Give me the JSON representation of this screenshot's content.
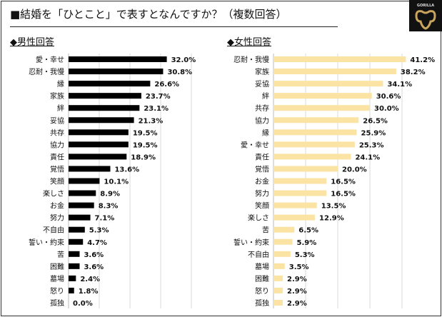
{
  "title": "■結婚を「ひとこと」で表すとなんですか？（複数回答）",
  "logo_text": "GORILLA",
  "chart_data": [
    {
      "type": "bar",
      "orientation": "horizontal",
      "title": "◆男性回答",
      "unit": "%",
      "xlim": [
        0,
        40
      ],
      "grid": true,
      "color": "#000000",
      "categories": [
        "愛・幸せ",
        "忍耐・我慢",
        "縁",
        "家族",
        "絆",
        "妥協",
        "共存",
        "協力",
        "責任",
        "覚悟",
        "笑顔",
        "楽しさ",
        "お金",
        "努力",
        "不自由",
        "誓い・約束",
        "苦",
        "困難",
        "墓場",
        "怒り",
        "孤独"
      ],
      "values": [
        32.0,
        30.8,
        26.6,
        23.7,
        23.1,
        21.3,
        19.5,
        19.5,
        18.9,
        13.6,
        10.1,
        8.9,
        8.3,
        7.1,
        5.3,
        4.7,
        3.6,
        3.6,
        2.4,
        1.8,
        0.0
      ],
      "labels": [
        "32.0%",
        "30.8%",
        "26.6%",
        "23.7%",
        "23.1%",
        "21.3%",
        "19.5%",
        "19.5%",
        "18.9%",
        "13.6%",
        "10.1%",
        "8.9%",
        "8.3%",
        "7.1%",
        "5.3%",
        "4.7%",
        "3.6%",
        "3.6%",
        "2.4%",
        "1.8%",
        "0.0%"
      ]
    },
    {
      "type": "bar",
      "orientation": "horizontal",
      "title": "◆女性回答",
      "unit": "%",
      "xlim": [
        0,
        40
      ],
      "grid": true,
      "color": "#FBE3A4",
      "categories": [
        "忍耐・我慢",
        "家族",
        "妥協",
        "絆",
        "共存",
        "協力",
        "縁",
        "愛・幸せ",
        "責任",
        "覚悟",
        "お金",
        "努力",
        "笑顔",
        "楽しさ",
        "苦",
        "誓い・約束",
        "不自由",
        "墓場",
        "困難",
        "怒り",
        "孤独"
      ],
      "values": [
        41.2,
        38.2,
        34.1,
        30.6,
        30.0,
        26.5,
        25.9,
        25.3,
        24.1,
        20.0,
        16.5,
        16.5,
        13.5,
        12.9,
        6.5,
        5.9,
        5.3,
        3.5,
        2.9,
        2.9,
        2.9
      ],
      "labels": [
        "41.2%",
        "38.2%",
        "34.1%",
        "30.6%",
        "30.0%",
        "26.5%",
        "25.9%",
        "25.3%",
        "24.1%",
        "20.0%",
        "16.5%",
        "16.5%",
        "13.5%",
        "12.9%",
        "6.5%",
        "5.9%",
        "5.3%",
        "3.5%",
        "2.9%",
        "2.9%",
        "2.9%"
      ]
    }
  ]
}
